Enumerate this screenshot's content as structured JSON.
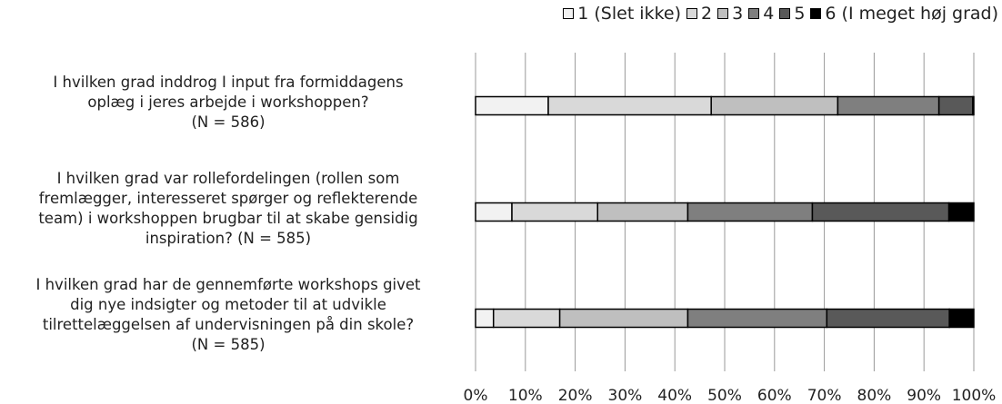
{
  "chart_data": {
    "type": "stacked-bar-horizontal",
    "categories": [
      "I hvilken grad inddrog I input fra formiddagens\noplæg i jeres arbejde i workshoppen?\n(N = 586)",
      "I hvilken grad var rollefordelingen (rollen som\nfremlægger, interesseret spørger og reflekterende\nteam) i workshoppen brugbar til at skabe gensidig\ninspiration? (N = 585)",
      "I hvilken grad har de gennemførte workshops givet\ndig nye indsigter og metoder til at udvikle\ntilrettelæggelsen af undervisningen på din skole?\n(N = 585)"
    ],
    "series": [
      {
        "name": "1 (Slet ikke)",
        "color": "#f2f2f2",
        "values": [
          14.6,
          7.3,
          3.6
        ]
      },
      {
        "name": "2",
        "color": "#d9d9d9",
        "values": [
          32.7,
          17.2,
          13.3
        ]
      },
      {
        "name": "3",
        "color": "#bfbfbf",
        "values": [
          25.4,
          18.1,
          25.7
        ]
      },
      {
        "name": "4",
        "color": "#7f7f7f",
        "values": [
          20.3,
          25.0,
          27.9
        ]
      },
      {
        "name": "5",
        "color": "#595959",
        "values": [
          6.8,
          27.4,
          24.6
        ]
      },
      {
        "name": "6 (I meget høj grad)",
        "color": "#000000",
        "values": [
          0.2,
          5.0,
          4.9
        ]
      }
    ],
    "xlim": [
      0,
      100
    ],
    "xticks": [
      {
        "value": 0,
        "label": "0%"
      },
      {
        "value": 10,
        "label": "10%"
      },
      {
        "value": 20,
        "label": "20%"
      },
      {
        "value": 30,
        "label": "30%"
      },
      {
        "value": 40,
        "label": "40%"
      },
      {
        "value": 50,
        "label": "50%"
      },
      {
        "value": 60,
        "label": "60%"
      },
      {
        "value": 70,
        "label": "70%"
      },
      {
        "value": 80,
        "label": "80%"
      },
      {
        "value": 90,
        "label": "90%"
      },
      {
        "value": 100,
        "label": "100%"
      }
    ],
    "grid": true,
    "legend": "top-right"
  }
}
